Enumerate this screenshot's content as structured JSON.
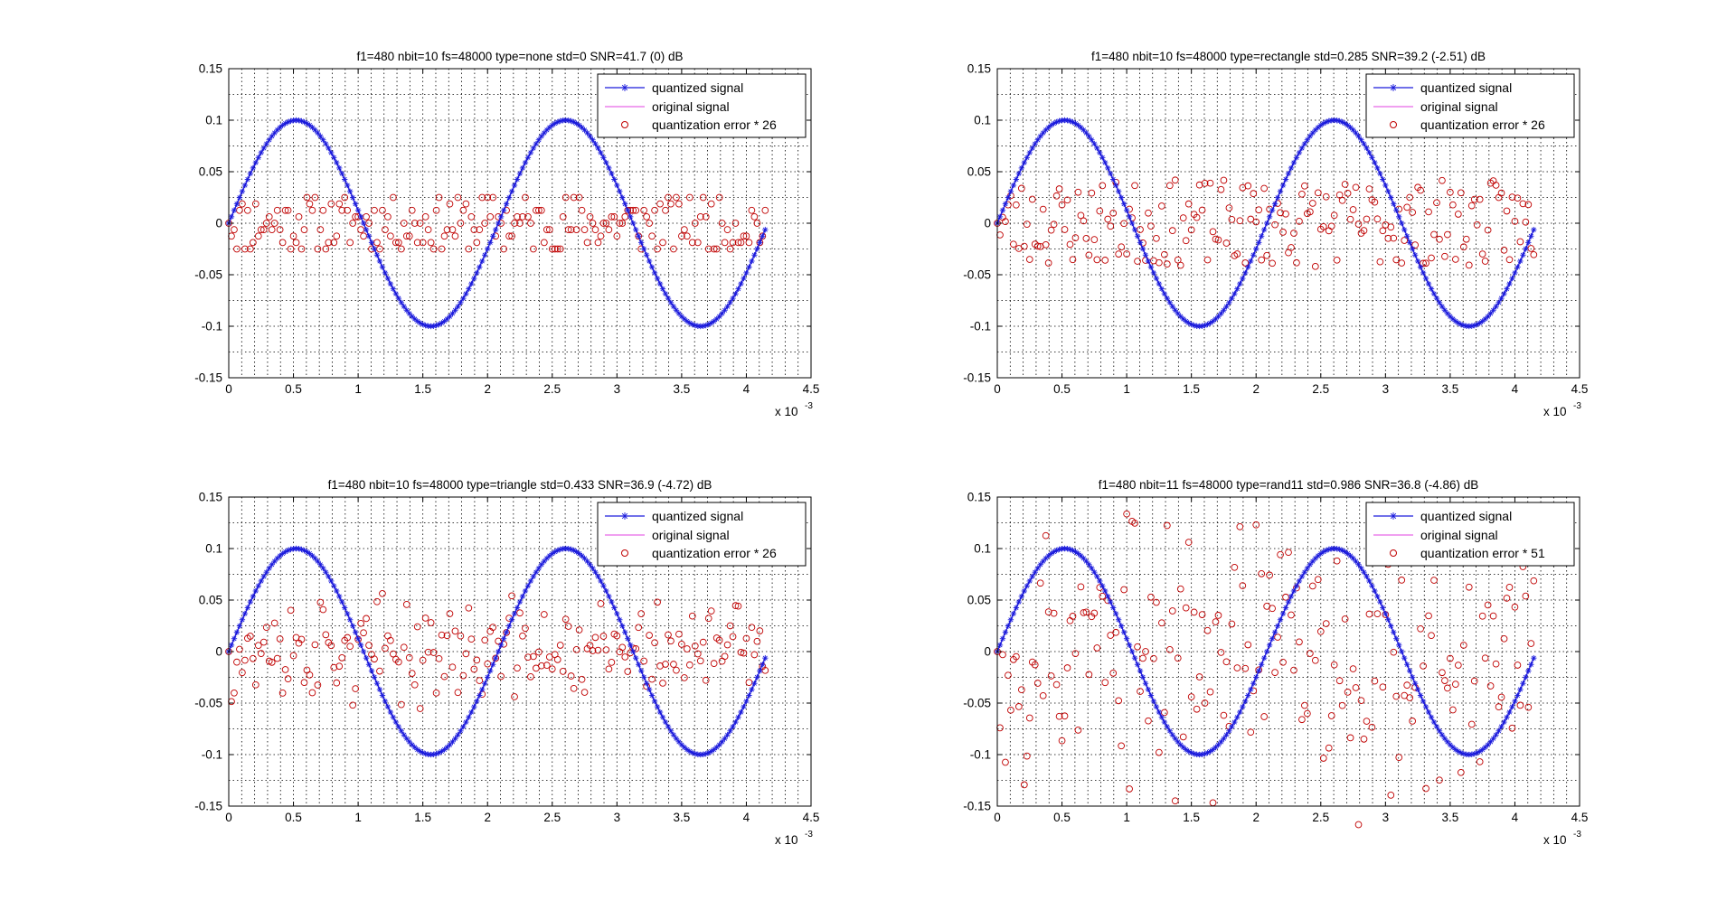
{
  "figure": {
    "legend_labels": [
      "quantized signal",
      "original signal"
    ],
    "axis_multiplier": {
      "base": "x 10",
      "exponent": "-3"
    },
    "colors": {
      "quantized": "#1a1adc",
      "original": "#e040e0",
      "error": "#c00000"
    }
  },
  "chart_data": [
    {
      "type": "line",
      "title": "f1=480 nbit=10 fs=48000 type=none std=0 SNR=41.7 (0) dB",
      "legend_entry_error": "quantization error * 26",
      "xlim": [
        0,
        4.5
      ],
      "ylim": [
        -0.15,
        0.15
      ],
      "xticks": [
        0,
        0.5,
        1,
        1.5,
        2,
        2.5,
        3,
        3.5,
        4,
        4.5
      ],
      "xtick_labels": [
        "0",
        "0.5",
        "1",
        "1.5",
        "2",
        "2.5",
        "3",
        "3.5",
        "4",
        "4.5"
      ],
      "yticks": [
        -0.15,
        -0.1,
        -0.05,
        0,
        0.05,
        0.1,
        0.15
      ],
      "ytick_labels": [
        "-0.15",
        "-0.1",
        "-0.05",
        "0",
        "0.05",
        "0.1",
        "0.15"
      ],
      "grid": true,
      "legend_position": "top-right",
      "signal": {
        "frequency_hz": 480,
        "amplitude": 0.1,
        "sample_rate_hz": 48000,
        "samples": 200
      },
      "error_scale": 26,
      "error_amplitude": 0.025,
      "error_seed": 11,
      "error_shape": "uniform-discrete",
      "series": [
        {
          "name": "quantized signal",
          "marker": "asterisk"
        },
        {
          "name": "original signal",
          "marker": "line"
        },
        {
          "name": "quantization error * 26",
          "marker": "circle"
        }
      ]
    },
    {
      "type": "line",
      "title": "f1=480 nbit=10 fs=48000 type=rectangle std=0.285 SNR=39.2 (-2.51) dB",
      "legend_entry_error": "quantization error * 26",
      "xlim": [
        0,
        4.5
      ],
      "ylim": [
        -0.15,
        0.15
      ],
      "xticks": [
        0,
        0.5,
        1,
        1.5,
        2,
        2.5,
        3,
        3.5,
        4,
        4.5
      ],
      "xtick_labels": [
        "0",
        "0.5",
        "1",
        "1.5",
        "2",
        "2.5",
        "3",
        "3.5",
        "4",
        "4.5"
      ],
      "yticks": [
        -0.15,
        -0.1,
        -0.05,
        0,
        0.05,
        0.1,
        0.15
      ],
      "ytick_labels": [
        "-0.15",
        "-0.1",
        "-0.05",
        "0",
        "0.05",
        "0.1",
        "0.15"
      ],
      "grid": true,
      "legend_position": "top-right",
      "signal": {
        "frequency_hz": 480,
        "amplitude": 0.1,
        "sample_rate_hz": 48000,
        "samples": 200
      },
      "error_scale": 26,
      "error_amplitude": 0.042,
      "error_seed": 23,
      "error_shape": "uniform",
      "series": [
        {
          "name": "quantized signal",
          "marker": "asterisk"
        },
        {
          "name": "original signal",
          "marker": "line"
        },
        {
          "name": "quantization error * 26",
          "marker": "circle"
        }
      ]
    },
    {
      "type": "line",
      "title": "f1=480 nbit=10 fs=48000 type=triangle std=0.433 SNR=36.9 (-4.72) dB",
      "legend_entry_error": "quantization error * 26",
      "xlim": [
        0,
        4.5
      ],
      "ylim": [
        -0.15,
        0.15
      ],
      "xticks": [
        0,
        0.5,
        1,
        1.5,
        2,
        2.5,
        3,
        3.5,
        4,
        4.5
      ],
      "xtick_labels": [
        "0",
        "0.5",
        "1",
        "1.5",
        "2",
        "2.5",
        "3",
        "3.5",
        "4",
        "4.5"
      ],
      "yticks": [
        -0.15,
        -0.1,
        -0.05,
        0,
        0.05,
        0.1,
        0.15
      ],
      "ytick_labels": [
        "-0.15",
        "-0.1",
        "-0.05",
        "0",
        "0.05",
        "0.1",
        "0.15"
      ],
      "grid": true,
      "legend_position": "top-right",
      "signal": {
        "frequency_hz": 480,
        "amplitude": 0.1,
        "sample_rate_hz": 48000,
        "samples": 200
      },
      "error_scale": 26,
      "error_amplitude": 0.06,
      "error_seed": 37,
      "error_shape": "triangle",
      "series": [
        {
          "name": "quantized signal",
          "marker": "asterisk"
        },
        {
          "name": "original signal",
          "marker": "line"
        },
        {
          "name": "quantization error * 26",
          "marker": "circle"
        }
      ]
    },
    {
      "type": "line",
      "title": "f1=480 nbit=11 fs=48000 type=rand11 std=0.986 SNR=36.8 (-4.86) dB",
      "legend_entry_error": "quantization error * 51",
      "xlim": [
        0,
        4.5
      ],
      "ylim": [
        -0.15,
        0.15
      ],
      "xticks": [
        0,
        0.5,
        1,
        1.5,
        2,
        2.5,
        3,
        3.5,
        4,
        4.5
      ],
      "xtick_labels": [
        "0",
        "0.5",
        "1",
        "1.5",
        "2",
        "2.5",
        "3",
        "3.5",
        "4",
        "4.5"
      ],
      "yticks": [
        -0.15,
        -0.1,
        -0.05,
        0,
        0.05,
        0.1,
        0.15
      ],
      "ytick_labels": [
        "-0.15",
        "-0.1",
        "-0.05",
        "0",
        "0.05",
        "0.1",
        "0.15"
      ],
      "grid": true,
      "legend_position": "top-right",
      "signal": {
        "frequency_hz": 480,
        "amplitude": 0.1,
        "sample_rate_hz": 48000,
        "samples": 200
      },
      "error_scale": 51,
      "error_amplitude": 0.135,
      "error_seed": 53,
      "error_shape": "gaussian",
      "series": [
        {
          "name": "quantized signal",
          "marker": "asterisk"
        },
        {
          "name": "original signal",
          "marker": "line"
        },
        {
          "name": "quantization error * 51",
          "marker": "circle"
        }
      ]
    }
  ]
}
